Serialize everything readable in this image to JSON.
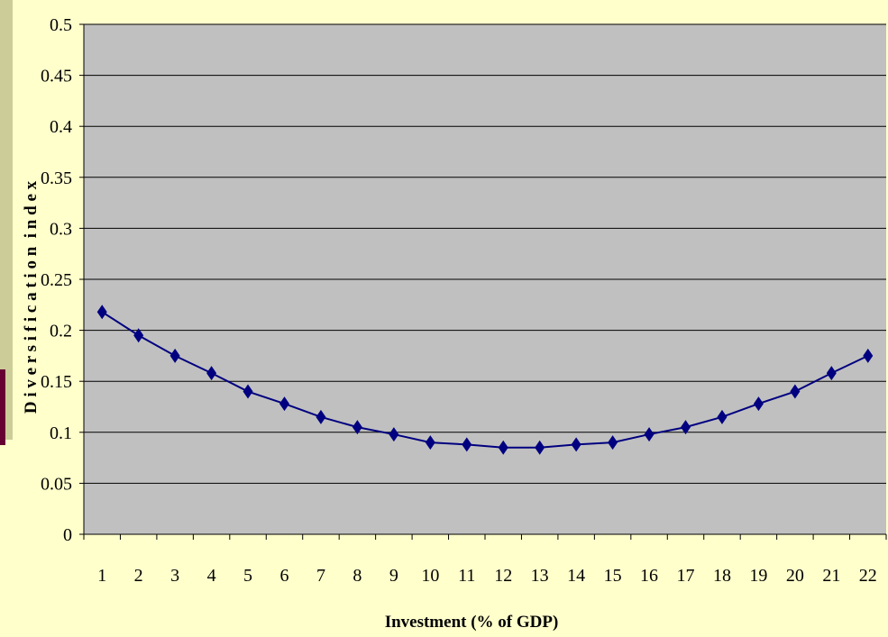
{
  "chart_data": {
    "type": "line",
    "title": "",
    "xlabel": "Investment (% of GDP)",
    "ylabel": "D i v e r s i f i c a t i o n  i n d e x",
    "categories": [
      "1",
      "2",
      "3",
      "4",
      "5",
      "6",
      "7",
      "8",
      "9",
      "10",
      "11",
      "12",
      "13",
      "14",
      "15",
      "16",
      "17",
      "18",
      "19",
      "20",
      "21",
      "22"
    ],
    "series": [
      {
        "values": [
          0.218,
          0.195,
          0.175,
          0.158,
          0.14,
          0.128,
          0.115,
          0.105,
          0.098,
          0.09,
          0.088,
          0.085,
          0.085,
          0.088,
          0.09,
          0.098,
          0.105,
          0.115,
          0.128,
          0.14,
          0.158,
          0.175
        ]
      }
    ],
    "ylim": [
      0,
      0.5
    ],
    "yticks": [
      "0",
      "0.05",
      "0.1",
      "0.15",
      "0.2",
      "0.25",
      "0.3",
      "0.35",
      "0.4",
      "0.45",
      "0.5"
    ],
    "grid": true,
    "legend": "none",
    "colors": {
      "plot_background": "#C0C0C0",
      "page_background": "#FFFFCC",
      "line": "#000080",
      "gridline": "#000000"
    },
    "marker": "diamond"
  }
}
